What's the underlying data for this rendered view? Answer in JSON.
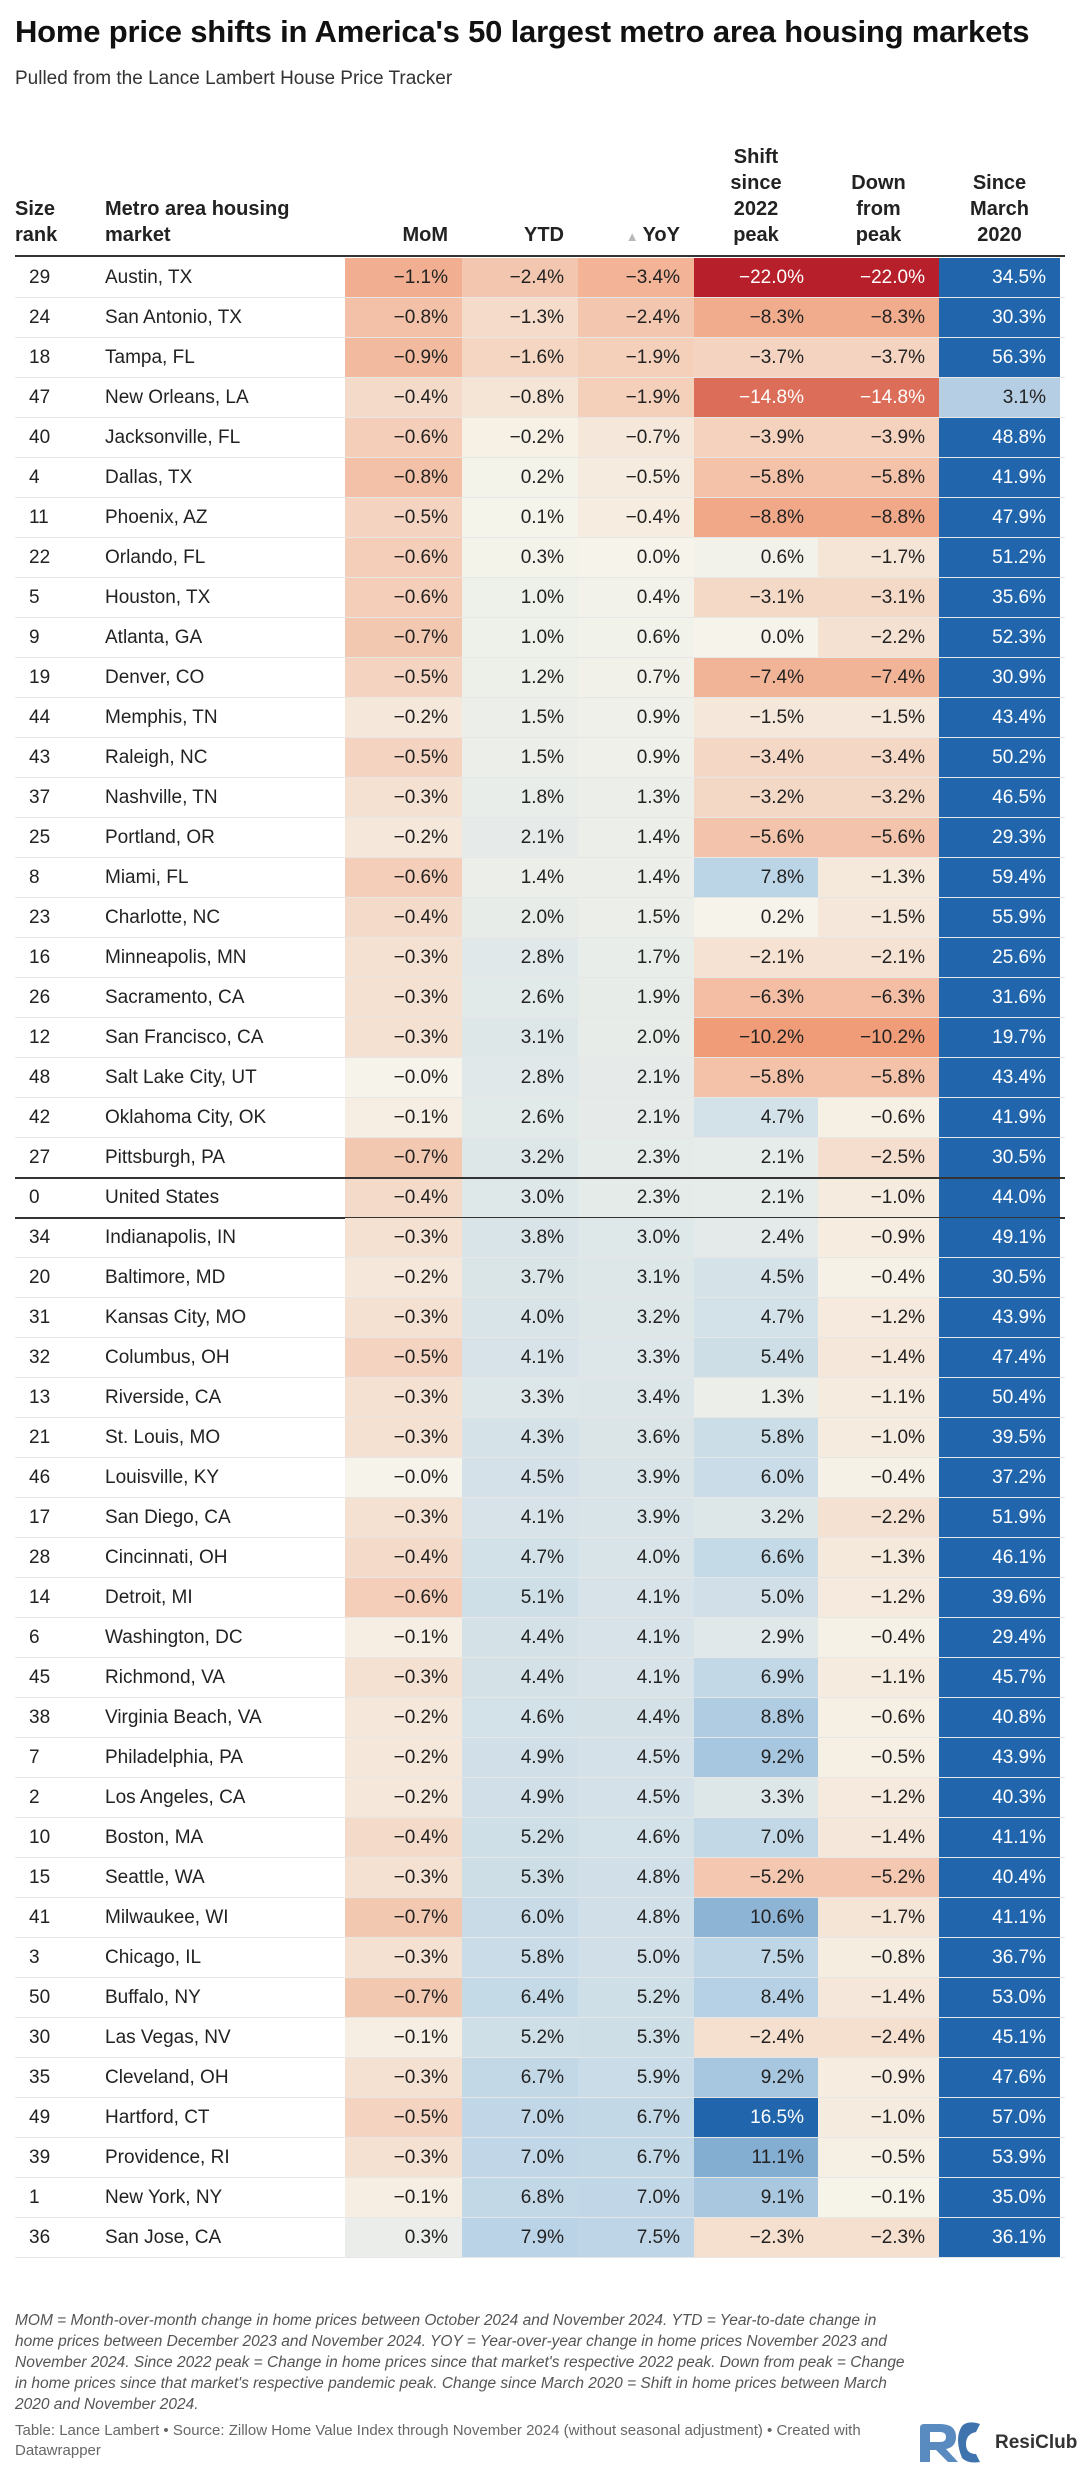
{
  "title": "Home price shifts in America's 50 largest metro area housing markets",
  "subtitle": "Pulled from the Lance Lambert House Price Tracker",
  "headers": {
    "rank": [
      "Size",
      "rank"
    ],
    "metro": [
      "Metro area housing",
      "market"
    ],
    "mom": [
      "MoM"
    ],
    "ytd": [
      "YTD"
    ],
    "yoy": [
      "YoY"
    ],
    "shift": [
      "Shift",
      "since",
      "2022",
      "peak"
    ],
    "down": [
      "Down",
      "from",
      "peak"
    ],
    "since": [
      "Since",
      "March",
      "2020"
    ]
  },
  "sort_icon": "sort-up-triangle-icon",
  "footnote": "MOM = Month-over-month change in home prices between October 2024 and November 2024. YTD = Year-to-date change in home prices between December 2023 and November 2024. YOY = Year-over-year change in home prices November 2023 and November 2024. Since 2022 peak = Change in home prices since that market's respective 2022 peak. Down from peak = Change in home prices since that market's respective pandemic peak. Change since March 2020 = Shift in home prices between March 2020 and November 2024.",
  "credits": "Table: Lance Lambert • Source: Zillow Home Value Index through November 2024 (without seasonal adjustment) • Created with Datawrapper",
  "logo_text": "ResiClub",
  "chart_data": {
    "type": "table",
    "title": "Home price shifts in America's 50 largest metro area housing markets",
    "columns": [
      "Size rank",
      "Metro area housing market",
      "MoM",
      "YTD",
      "YoY",
      "Shift since 2022 peak",
      "Down from peak",
      "Since March 2020"
    ],
    "sorted_by": "YoY",
    "rows": [
      {
        "rank": "29",
        "metro": "Austin, TX",
        "mom": "−1.1%",
        "ytd": "−2.4%",
        "yoy": "−3.4%",
        "shift": "−22.0%",
        "down": "−22.0%",
        "since": "34.5%"
      },
      {
        "rank": "24",
        "metro": "San Antonio, TX",
        "mom": "−0.8%",
        "ytd": "−1.3%",
        "yoy": "−2.4%",
        "shift": "−8.3%",
        "down": "−8.3%",
        "since": "30.3%"
      },
      {
        "rank": "18",
        "metro": "Tampa, FL",
        "mom": "−0.9%",
        "ytd": "−1.6%",
        "yoy": "−1.9%",
        "shift": "−3.7%",
        "down": "−3.7%",
        "since": "56.3%"
      },
      {
        "rank": "47",
        "metro": "New Orleans, LA",
        "mom": "−0.4%",
        "ytd": "−0.8%",
        "yoy": "−1.9%",
        "shift": "−14.8%",
        "down": "−14.8%",
        "since": "3.1%"
      },
      {
        "rank": "40",
        "metro": "Jacksonville, FL",
        "mom": "−0.6%",
        "ytd": "−0.2%",
        "yoy": "−0.7%",
        "shift": "−3.9%",
        "down": "−3.9%",
        "since": "48.8%"
      },
      {
        "rank": "4",
        "metro": "Dallas, TX",
        "mom": "−0.8%",
        "ytd": "0.2%",
        "yoy": "−0.5%",
        "shift": "−5.8%",
        "down": "−5.8%",
        "since": "41.9%"
      },
      {
        "rank": "11",
        "metro": "Phoenix, AZ",
        "mom": "−0.5%",
        "ytd": "0.1%",
        "yoy": "−0.4%",
        "shift": "−8.8%",
        "down": "−8.8%",
        "since": "47.9%"
      },
      {
        "rank": "22",
        "metro": "Orlando, FL",
        "mom": "−0.6%",
        "ytd": "0.3%",
        "yoy": "0.0%",
        "shift": "0.6%",
        "down": "−1.7%",
        "since": "51.2%"
      },
      {
        "rank": "5",
        "metro": "Houston, TX",
        "mom": "−0.6%",
        "ytd": "1.0%",
        "yoy": "0.4%",
        "shift": "−3.1%",
        "down": "−3.1%",
        "since": "35.6%"
      },
      {
        "rank": "9",
        "metro": "Atlanta, GA",
        "mom": "−0.7%",
        "ytd": "1.0%",
        "yoy": "0.6%",
        "shift": "0.0%",
        "down": "−2.2%",
        "since": "52.3%"
      },
      {
        "rank": "19",
        "metro": "Denver, CO",
        "mom": "−0.5%",
        "ytd": "1.2%",
        "yoy": "0.7%",
        "shift": "−7.4%",
        "down": "−7.4%",
        "since": "30.9%"
      },
      {
        "rank": "44",
        "metro": "Memphis, TN",
        "mom": "−0.2%",
        "ytd": "1.5%",
        "yoy": "0.9%",
        "shift": "−1.5%",
        "down": "−1.5%",
        "since": "43.4%"
      },
      {
        "rank": "43",
        "metro": "Raleigh, NC",
        "mom": "−0.5%",
        "ytd": "1.5%",
        "yoy": "0.9%",
        "shift": "−3.4%",
        "down": "−3.4%",
        "since": "50.2%"
      },
      {
        "rank": "37",
        "metro": "Nashville, TN",
        "mom": "−0.3%",
        "ytd": "1.8%",
        "yoy": "1.3%",
        "shift": "−3.2%",
        "down": "−3.2%",
        "since": "46.5%"
      },
      {
        "rank": "25",
        "metro": "Portland, OR",
        "mom": "−0.2%",
        "ytd": "2.1%",
        "yoy": "1.4%",
        "shift": "−5.6%",
        "down": "−5.6%",
        "since": "29.3%"
      },
      {
        "rank": "8",
        "metro": "Miami, FL",
        "mom": "−0.6%",
        "ytd": "1.4%",
        "yoy": "1.4%",
        "shift": "7.8%",
        "down": "−1.3%",
        "since": "59.4%"
      },
      {
        "rank": "23",
        "metro": "Charlotte, NC",
        "mom": "−0.4%",
        "ytd": "2.0%",
        "yoy": "1.5%",
        "shift": "0.2%",
        "down": "−1.5%",
        "since": "55.9%"
      },
      {
        "rank": "16",
        "metro": "Minneapolis, MN",
        "mom": "−0.3%",
        "ytd": "2.8%",
        "yoy": "1.7%",
        "shift": "−2.1%",
        "down": "−2.1%",
        "since": "25.6%"
      },
      {
        "rank": "26",
        "metro": "Sacramento, CA",
        "mom": "−0.3%",
        "ytd": "2.6%",
        "yoy": "1.9%",
        "shift": "−6.3%",
        "down": "−6.3%",
        "since": "31.6%"
      },
      {
        "rank": "12",
        "metro": "San Francisco, CA",
        "mom": "−0.3%",
        "ytd": "3.1%",
        "yoy": "2.0%",
        "shift": "−10.2%",
        "down": "−10.2%",
        "since": "19.7%"
      },
      {
        "rank": "48",
        "metro": "Salt Lake City, UT",
        "mom": "−0.0%",
        "ytd": "2.8%",
        "yoy": "2.1%",
        "shift": "−5.8%",
        "down": "−5.8%",
        "since": "43.4%"
      },
      {
        "rank": "42",
        "metro": "Oklahoma City, OK",
        "mom": "−0.1%",
        "ytd": "2.6%",
        "yoy": "2.1%",
        "shift": "4.7%",
        "down": "−0.6%",
        "since": "41.9%"
      },
      {
        "rank": "27",
        "metro": "Pittsburgh, PA",
        "mom": "−0.7%",
        "ytd": "3.2%",
        "yoy": "2.3%",
        "shift": "2.1%",
        "down": "−2.5%",
        "since": "30.5%"
      },
      {
        "rank": "0",
        "metro": "United States",
        "mom": "−0.4%",
        "ytd": "3.0%",
        "yoy": "2.3%",
        "shift": "2.1%",
        "down": "−1.0%",
        "since": "44.0%",
        "highlight": true
      },
      {
        "rank": "34",
        "metro": "Indianapolis, IN",
        "mom": "−0.3%",
        "ytd": "3.8%",
        "yoy": "3.0%",
        "shift": "2.4%",
        "down": "−0.9%",
        "since": "49.1%"
      },
      {
        "rank": "20",
        "metro": "Baltimore, MD",
        "mom": "−0.2%",
        "ytd": "3.7%",
        "yoy": "3.1%",
        "shift": "4.5%",
        "down": "−0.4%",
        "since": "30.5%"
      },
      {
        "rank": "31",
        "metro": "Kansas City, MO",
        "mom": "−0.3%",
        "ytd": "4.0%",
        "yoy": "3.2%",
        "shift": "4.7%",
        "down": "−1.2%",
        "since": "43.9%"
      },
      {
        "rank": "32",
        "metro": "Columbus, OH",
        "mom": "−0.5%",
        "ytd": "4.1%",
        "yoy": "3.3%",
        "shift": "5.4%",
        "down": "−1.4%",
        "since": "47.4%"
      },
      {
        "rank": "13",
        "metro": "Riverside, CA",
        "mom": "−0.3%",
        "ytd": "3.3%",
        "yoy": "3.4%",
        "shift": "1.3%",
        "down": "−1.1%",
        "since": "50.4%"
      },
      {
        "rank": "21",
        "metro": "St. Louis, MO",
        "mom": "−0.3%",
        "ytd": "4.3%",
        "yoy": "3.6%",
        "shift": "5.8%",
        "down": "−1.0%",
        "since": "39.5%"
      },
      {
        "rank": "46",
        "metro": "Louisville, KY",
        "mom": "−0.0%",
        "ytd": "4.5%",
        "yoy": "3.9%",
        "shift": "6.0%",
        "down": "−0.4%",
        "since": "37.2%"
      },
      {
        "rank": "17",
        "metro": "San Diego, CA",
        "mom": "−0.3%",
        "ytd": "4.1%",
        "yoy": "3.9%",
        "shift": "3.2%",
        "down": "−2.2%",
        "since": "51.9%"
      },
      {
        "rank": "28",
        "metro": "Cincinnati, OH",
        "mom": "−0.4%",
        "ytd": "4.7%",
        "yoy": "4.0%",
        "shift": "6.6%",
        "down": "−1.3%",
        "since": "46.1%"
      },
      {
        "rank": "14",
        "metro": "Detroit, MI",
        "mom": "−0.6%",
        "ytd": "5.1%",
        "yoy": "4.1%",
        "shift": "5.0%",
        "down": "−1.2%",
        "since": "39.6%"
      },
      {
        "rank": "6",
        "metro": "Washington, DC",
        "mom": "−0.1%",
        "ytd": "4.4%",
        "yoy": "4.1%",
        "shift": "2.9%",
        "down": "−0.4%",
        "since": "29.4%"
      },
      {
        "rank": "45",
        "metro": "Richmond, VA",
        "mom": "−0.3%",
        "ytd": "4.4%",
        "yoy": "4.1%",
        "shift": "6.9%",
        "down": "−1.1%",
        "since": "45.7%"
      },
      {
        "rank": "38",
        "metro": "Virginia Beach, VA",
        "mom": "−0.2%",
        "ytd": "4.6%",
        "yoy": "4.4%",
        "shift": "8.8%",
        "down": "−0.6%",
        "since": "40.8%"
      },
      {
        "rank": "7",
        "metro": "Philadelphia, PA",
        "mom": "−0.2%",
        "ytd": "4.9%",
        "yoy": "4.5%",
        "shift": "9.2%",
        "down": "−0.5%",
        "since": "43.9%"
      },
      {
        "rank": "2",
        "metro": "Los Angeles, CA",
        "mom": "−0.2%",
        "ytd": "4.9%",
        "yoy": "4.5%",
        "shift": "3.3%",
        "down": "−1.2%",
        "since": "40.3%"
      },
      {
        "rank": "10",
        "metro": "Boston, MA",
        "mom": "−0.4%",
        "ytd": "5.2%",
        "yoy": "4.6%",
        "shift": "7.0%",
        "down": "−1.4%",
        "since": "41.1%"
      },
      {
        "rank": "15",
        "metro": "Seattle, WA",
        "mom": "−0.3%",
        "ytd": "5.3%",
        "yoy": "4.8%",
        "shift": "−5.2%",
        "down": "−5.2%",
        "since": "40.4%"
      },
      {
        "rank": "41",
        "metro": "Milwaukee, WI",
        "mom": "−0.7%",
        "ytd": "6.0%",
        "yoy": "4.8%",
        "shift": "10.6%",
        "down": "−1.7%",
        "since": "41.1%"
      },
      {
        "rank": "3",
        "metro": "Chicago, IL",
        "mom": "−0.3%",
        "ytd": "5.8%",
        "yoy": "5.0%",
        "shift": "7.5%",
        "down": "−0.8%",
        "since": "36.7%"
      },
      {
        "rank": "50",
        "metro": "Buffalo, NY",
        "mom": "−0.7%",
        "ytd": "6.4%",
        "yoy": "5.2%",
        "shift": "8.4%",
        "down": "−1.4%",
        "since": "53.0%"
      },
      {
        "rank": "30",
        "metro": "Las Vegas, NV",
        "mom": "−0.1%",
        "ytd": "5.2%",
        "yoy": "5.3%",
        "shift": "−2.4%",
        "down": "−2.4%",
        "since": "45.1%"
      },
      {
        "rank": "35",
        "metro": "Cleveland, OH",
        "mom": "−0.3%",
        "ytd": "6.7%",
        "yoy": "5.9%",
        "shift": "9.2%",
        "down": "−0.9%",
        "since": "47.6%"
      },
      {
        "rank": "49",
        "metro": "Hartford, CT",
        "mom": "−0.5%",
        "ytd": "7.0%",
        "yoy": "6.7%",
        "shift": "16.5%",
        "down": "−1.0%",
        "since": "57.0%"
      },
      {
        "rank": "39",
        "metro": "Providence, RI",
        "mom": "−0.3%",
        "ytd": "7.0%",
        "yoy": "6.7%",
        "shift": "11.1%",
        "down": "−0.5%",
        "since": "53.9%"
      },
      {
        "rank": "1",
        "metro": "New York, NY",
        "mom": "−0.1%",
        "ytd": "6.8%",
        "yoy": "7.0%",
        "shift": "9.1%",
        "down": "−0.1%",
        "since": "35.0%"
      },
      {
        "rank": "36",
        "metro": "San Jose, CA",
        "mom": "0.3%",
        "ytd": "7.9%",
        "yoy": "7.5%",
        "shift": "−2.3%",
        "down": "−2.3%",
        "since": "36.1%"
      }
    ]
  }
}
